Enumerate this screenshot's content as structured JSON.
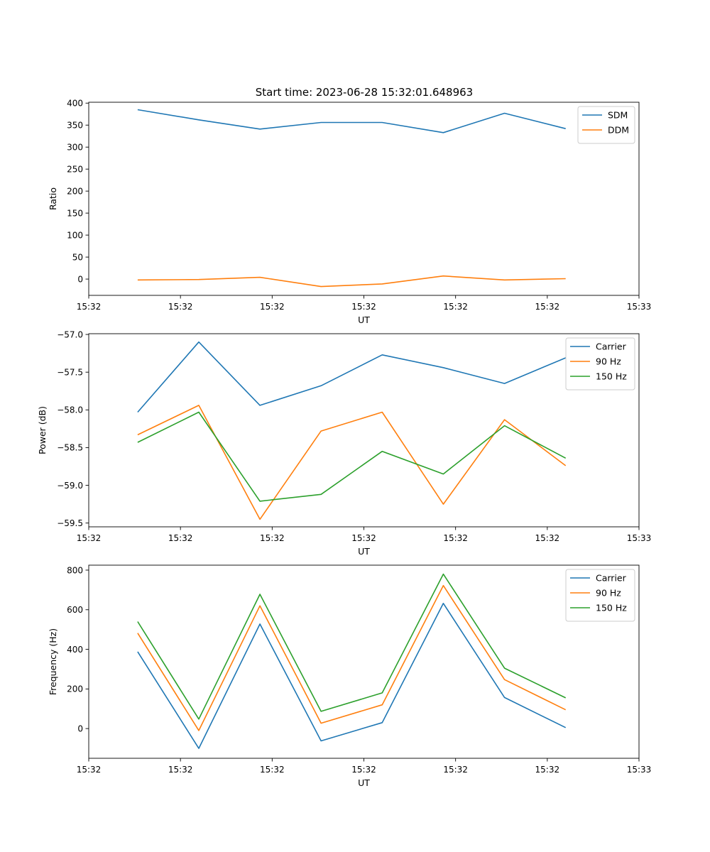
{
  "chart_data": [
    {
      "type": "line",
      "title": "Start time: 2023-06-28 15:32:01.648963",
      "xlabel": "UT",
      "ylabel": "Ratio",
      "x_tick_labels": [
        "15:32",
        "15:32",
        "15:32",
        "15:32",
        "15:32",
        "15:32",
        "15:33"
      ],
      "x": [
        1,
        2,
        3,
        4,
        5,
        6,
        7,
        8
      ],
      "xlim": [
        0.2,
        9.2
      ],
      "x_ticks": [
        0.2,
        1.7,
        3.2,
        4.7,
        6.2,
        7.7,
        9.2
      ],
      "ylim": [
        -37,
        402
      ],
      "y_ticks": [
        0,
        50,
        100,
        150,
        200,
        250,
        300,
        350,
        400
      ],
      "legend": "top-right",
      "grid": false,
      "series": [
        {
          "name": "SDM",
          "color": "#1f77b4",
          "values": [
            385,
            362,
            341,
            356,
            356,
            333,
            377,
            342
          ]
        },
        {
          "name": "DDM",
          "color": "#ff7f0e",
          "values": [
            -2,
            -1,
            4,
            -17,
            -11,
            7,
            -2,
            1
          ]
        }
      ]
    },
    {
      "type": "line",
      "title": "",
      "xlabel": "UT",
      "ylabel": "Power (dB)",
      "x_tick_labels": [
        "15:32",
        "15:32",
        "15:32",
        "15:32",
        "15:32",
        "15:32",
        "15:33"
      ],
      "x": [
        1,
        2,
        3,
        4,
        5,
        6,
        7,
        8
      ],
      "xlim": [
        0.2,
        9.2
      ],
      "x_ticks": [
        0.2,
        1.7,
        3.2,
        4.7,
        6.2,
        7.7,
        9.2
      ],
      "ylim": [
        -59.55,
        -56.99
      ],
      "y_ticks": [
        -59.5,
        -59.0,
        -58.5,
        -58.0,
        -57.5,
        -57.0
      ],
      "y_tick_labels": [
        "−59.5",
        "−59.0",
        "−58.5",
        "−58.0",
        "−57.5",
        "−57.0"
      ],
      "legend": "top-right",
      "grid": false,
      "series": [
        {
          "name": "Carrier",
          "color": "#1f77b4",
          "values": [
            -58.03,
            -57.1,
            -57.94,
            -57.68,
            -57.27,
            -57.44,
            -57.65,
            -57.31
          ]
        },
        {
          "name": "90 Hz",
          "color": "#ff7f0e",
          "values": [
            -58.33,
            -57.94,
            -59.45,
            -58.28,
            -58.03,
            -59.25,
            -58.13,
            -58.74
          ]
        },
        {
          "name": "150 Hz",
          "color": "#2ca02c",
          "values": [
            -58.43,
            -58.03,
            -59.21,
            -59.12,
            -58.55,
            -58.85,
            -58.21,
            -58.64
          ]
        }
      ]
    },
    {
      "type": "line",
      "title": "",
      "xlabel": "UT",
      "ylabel": "Frequency (Hz)",
      "x_tick_labels": [
        "15:32",
        "15:32",
        "15:32",
        "15:32",
        "15:32",
        "15:32",
        "15:33"
      ],
      "x": [
        1,
        2,
        3,
        4,
        5,
        6,
        7,
        8
      ],
      "xlim": [
        0.2,
        9.2
      ],
      "x_ticks": [
        0.2,
        1.7,
        3.2,
        4.7,
        6.2,
        7.7,
        9.2
      ],
      "ylim": [
        -150,
        825
      ],
      "y_ticks": [
        0,
        200,
        400,
        600,
        800
      ],
      "legend": "top-right",
      "grid": false,
      "series": [
        {
          "name": "Carrier",
          "color": "#1f77b4",
          "values": [
            388,
            -100,
            528,
            -62,
            30,
            632,
            157,
            5
          ]
        },
        {
          "name": "90 Hz",
          "color": "#ff7f0e",
          "values": [
            482,
            -10,
            620,
            27,
            120,
            722,
            247,
            95
          ]
        },
        {
          "name": "150 Hz",
          "color": "#2ca02c",
          "values": [
            540,
            48,
            678,
            87,
            180,
            780,
            305,
            155
          ]
        }
      ]
    }
  ]
}
